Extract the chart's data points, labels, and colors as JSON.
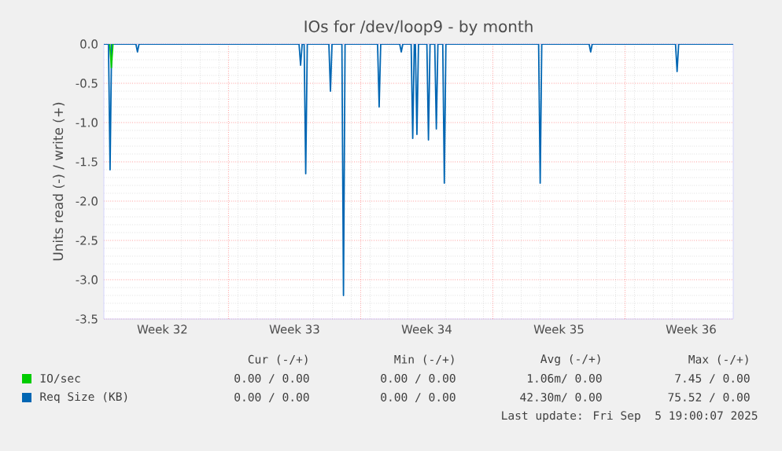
{
  "chart_data": {
    "type": "line",
    "title": "IOs for /dev/loop9 - by month",
    "ylabel": "Units read (-) / write (+)",
    "xlim": [
      "2025-08-04T09:36",
      "2025-09-06T17:31"
    ],
    "xticks": [
      {
        "value": "2025-08-07T12:00",
        "label": "Week 32"
      },
      {
        "value": "2025-08-11T00:00",
        "label": null
      },
      {
        "value": "2025-08-14T12:00",
        "label": "Week 33"
      },
      {
        "value": "2025-08-18T00:00",
        "label": null
      },
      {
        "value": "2025-08-21T12:00",
        "label": "Week 34"
      },
      {
        "value": "2025-08-25T00:00",
        "label": null
      },
      {
        "value": "2025-08-28T12:00",
        "label": "Week 35"
      },
      {
        "value": "2025-09-01T00:00",
        "label": null
      },
      {
        "value": "2025-09-04T12:00",
        "label": "Week 36"
      }
    ],
    "ylim": [
      -3.5,
      0
    ],
    "yticks": [
      {
        "value": 0,
        "label": "0.0"
      },
      {
        "value": -0.5,
        "label": "-0.5"
      },
      {
        "value": -1,
        "label": "-1.0"
      },
      {
        "value": -1.5,
        "label": "-1.5"
      },
      {
        "value": -2,
        "label": "-2.0"
      },
      {
        "value": -2.5,
        "label": "-2.5"
      },
      {
        "value": -3,
        "label": "-3.0"
      },
      {
        "value": -3.5,
        "label": "-3.5"
      }
    ],
    "grid": true,
    "legend": "bottom",
    "series": [
      {
        "name": "IO/sec",
        "color": "#00cc00",
        "x": [
          "2025-08-04T17:10",
          "2025-08-04T19:10",
          "2025-08-04T21:10"
        ],
        "values": [
          0,
          -0.3,
          0
        ]
      },
      {
        "name": "Req Size (KB)",
        "color": "#0066b3",
        "x": [
          "2025-08-04T09:36",
          "2025-08-04T15:30",
          "2025-08-04T17:30",
          "2025-08-04T19:30",
          "2025-08-06T02:20",
          "2025-08-06T04:20",
          "2025-08-06T06:20",
          "2025-08-14T17:40",
          "2025-08-14T19:40",
          "2025-08-14T21:40",
          "2025-08-15T00:10",
          "2025-08-15T02:10",
          "2025-08-15T04:10",
          "2025-08-16T07:36",
          "2025-08-16T09:36",
          "2025-08-16T11:36",
          "2025-08-17T00:10",
          "2025-08-17T02:10",
          "2025-08-17T04:10",
          "2025-08-18T21:30",
          "2025-08-18T23:30",
          "2025-08-19T01:30",
          "2025-08-20T01:36",
          "2025-08-20T03:36",
          "2025-08-20T05:36",
          "2025-08-20T16:10",
          "2025-08-20T18:10",
          "2025-08-20T20:10",
          "2025-08-20T21:30",
          "2025-08-20T23:30",
          "2025-08-21T01:30",
          "2025-08-21T12:10",
          "2025-08-21T14:10",
          "2025-08-21T16:10",
          "2025-08-21T22:10",
          "2025-08-22T00:10",
          "2025-08-22T02:10",
          "2025-08-22T08:20",
          "2025-08-22T10:20",
          "2025-08-22T12:20",
          "2025-08-27T10:10",
          "2025-08-27T12:10",
          "2025-08-27T14:10",
          "2025-08-30T02:20",
          "2025-08-30T04:20",
          "2025-08-30T06:20",
          "2025-09-03T16:10",
          "2025-09-03T18:10",
          "2025-09-03T20:10",
          "2025-09-06T17:31"
        ],
        "values": [
          0,
          0,
          -1.6,
          0,
          0,
          -0.1,
          0,
          0,
          -0.27,
          0,
          0,
          -1.65,
          0,
          0,
          -0.6,
          0,
          0,
          -3.2,
          0,
          0,
          -0.8,
          0,
          0,
          -0.1,
          0,
          0,
          -1.2,
          0,
          0,
          -1.15,
          0,
          0,
          -1.22,
          0,
          0,
          -1.08,
          0,
          0,
          -1.77,
          0,
          0,
          -1.77,
          0,
          0,
          -0.1,
          0,
          0,
          -0.35,
          0,
          0
        ]
      }
    ],
    "annotations": [
      "Cur (-/+)",
      "Min (-/+)",
      "Avg (-/+)",
      "Max (-/+)",
      "0.00 / 0.00",
      "0.00 / 0.00",
      "1.06m/ 0.00",
      "7.45 / 0.00",
      "0.00 / 0.00",
      "0.00 / 0.00",
      "42.30m/ 0.00",
      "75.52 / 0.00",
      "Last update: Fri Sep  5 19:00:07 2025"
    ]
  }
}
